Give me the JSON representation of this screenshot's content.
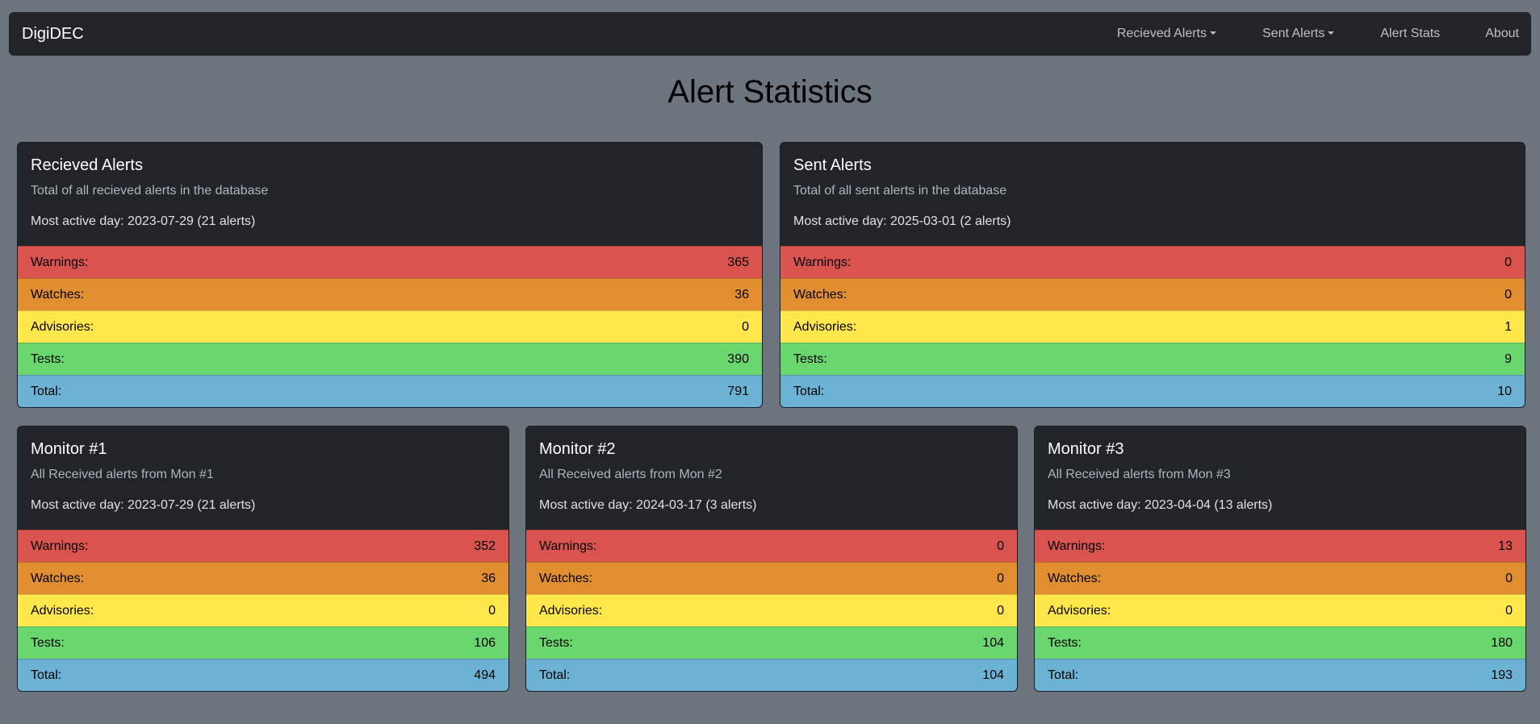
{
  "nav": {
    "brand": "DigiDEC",
    "links": [
      {
        "label": "Recieved Alerts",
        "dropdown": true
      },
      {
        "label": "Sent Alerts",
        "dropdown": true
      },
      {
        "label": "Alert Stats",
        "dropdown": false
      },
      {
        "label": "About",
        "dropdown": false
      }
    ]
  },
  "page_title": "Alert Statistics",
  "row_colors": {
    "warnings": "#d9534f",
    "watches": "#e08e2f",
    "advisories": "#ffe74c",
    "tests": "#6ad66e",
    "total": "#6cb2d4"
  },
  "cards": [
    {
      "title": "Recieved Alerts",
      "subtitle": "Total of all recieved alerts in the database",
      "most_active": "Most active day: 2023-07-29 (21 alerts)",
      "rows": [
        {
          "label": "Warnings:",
          "value": "365"
        },
        {
          "label": "Watches:",
          "value": "36"
        },
        {
          "label": "Advisories:",
          "value": "0"
        },
        {
          "label": "Tests:",
          "value": "390"
        },
        {
          "label": "Total:",
          "value": "791"
        }
      ]
    },
    {
      "title": "Sent Alerts",
      "subtitle": "Total of all sent alerts in the database",
      "most_active": "Most active day: 2025-03-01 (2 alerts)",
      "rows": [
        {
          "label": "Warnings:",
          "value": "0"
        },
        {
          "label": "Watches:",
          "value": "0"
        },
        {
          "label": "Advisories:",
          "value": "1"
        },
        {
          "label": "Tests:",
          "value": "9"
        },
        {
          "label": "Total:",
          "value": "10"
        }
      ]
    },
    {
      "title": "Monitor #1",
      "subtitle": "All Received alerts from Mon #1",
      "most_active": "Most active day: 2023-07-29 (21 alerts)",
      "rows": [
        {
          "label": "Warnings:",
          "value": "352"
        },
        {
          "label": "Watches:",
          "value": "36"
        },
        {
          "label": "Advisories:",
          "value": "0"
        },
        {
          "label": "Tests:",
          "value": "106"
        },
        {
          "label": "Total:",
          "value": "494"
        }
      ]
    },
    {
      "title": "Monitor #2",
      "subtitle": "All Received alerts from Mon #2",
      "most_active": "Most active day: 2024-03-17 (3 alerts)",
      "rows": [
        {
          "label": "Warnings:",
          "value": "0"
        },
        {
          "label": "Watches:",
          "value": "0"
        },
        {
          "label": "Advisories:",
          "value": "0"
        },
        {
          "label": "Tests:",
          "value": "104"
        },
        {
          "label": "Total:",
          "value": "104"
        }
      ]
    },
    {
      "title": "Monitor #3",
      "subtitle": "All Received alerts from Mon #3",
      "most_active": "Most active day: 2023-04-04 (13 alerts)",
      "rows": [
        {
          "label": "Warnings:",
          "value": "13"
        },
        {
          "label": "Watches:",
          "value": "0"
        },
        {
          "label": "Advisories:",
          "value": "0"
        },
        {
          "label": "Tests:",
          "value": "180"
        },
        {
          "label": "Total:",
          "value": "193"
        }
      ]
    }
  ]
}
